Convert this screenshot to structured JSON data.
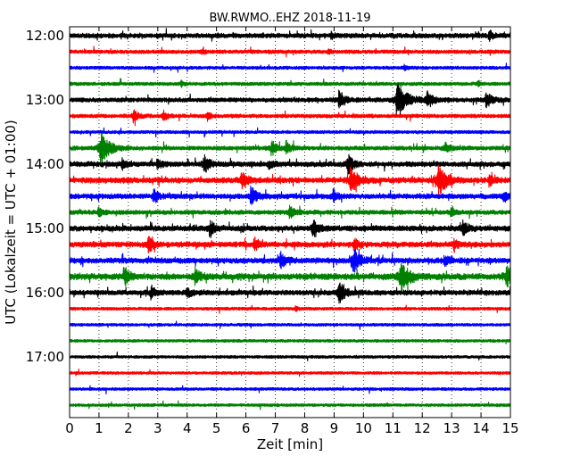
{
  "chart_data": {
    "type": "line",
    "title": "BW.RWMO..EHZ 2018-11-19",
    "xlabel": "Zeit  [min]",
    "ylabel": "UTC (Lokalzeit = UTC + 01:00)",
    "xlim": [
      0,
      15
    ],
    "x_ticks": [
      "0",
      "1",
      "2",
      "3",
      "4",
      "5",
      "6",
      "7",
      "8",
      "9",
      "10",
      "11",
      "12",
      "13",
      "14",
      "15"
    ],
    "y_ticks": [
      "12:00",
      "13:00",
      "14:00",
      "15:00",
      "16:00",
      "17:00"
    ],
    "grid": "vertical dotted",
    "colors": [
      "#000000",
      "#ff0000",
      "#0000ff",
      "#008000"
    ],
    "rows": [
      {
        "start": "12:00",
        "color": "#000000",
        "activity": 0.35,
        "events": [
          [
            14.3,
            0.6
          ],
          [
            8.9,
            0.35
          ]
        ]
      },
      {
        "start": "12:15",
        "color": "#ff0000",
        "activity": 0.2,
        "events": [
          [
            4.5,
            0.25
          ],
          [
            8.8,
            0.25
          ]
        ]
      },
      {
        "start": "12:30",
        "color": "#0000ff",
        "activity": 0.12,
        "events": [
          [
            11.4,
            0.3
          ]
        ]
      },
      {
        "start": "12:45",
        "color": "#008000",
        "activity": 0.15,
        "events": [
          [
            3.8,
            0.3
          ],
          [
            13.9,
            0.25
          ]
        ]
      },
      {
        "start": "13:00",
        "color": "#000000",
        "activity": 0.3,
        "events": [
          [
            9.2,
            1.0
          ],
          [
            11.2,
            1.9
          ],
          [
            12.2,
            0.9
          ],
          [
            14.2,
            0.9
          ]
        ]
      },
      {
        "start": "13:15",
        "color": "#ff0000",
        "activity": 0.2,
        "events": [
          [
            2.2,
            0.8
          ],
          [
            3.2,
            0.6
          ],
          [
            4.7,
            0.5
          ]
        ]
      },
      {
        "start": "13:30",
        "color": "#0000ff",
        "activity": 0.12,
        "events": []
      },
      {
        "start": "13:45",
        "color": "#008000",
        "activity": 0.25,
        "events": [
          [
            1.1,
            1.8
          ],
          [
            6.9,
            0.8
          ],
          [
            7.4,
            0.7
          ],
          [
            12.8,
            0.6
          ]
        ]
      },
      {
        "start": "14:00",
        "color": "#000000",
        "activity": 0.4,
        "events": [
          [
            1.8,
            0.6
          ],
          [
            3.0,
            0.6
          ],
          [
            4.6,
            0.9
          ],
          [
            6.8,
            0.5
          ],
          [
            9.5,
            1.0
          ]
        ]
      },
      {
        "start": "14:15",
        "color": "#ff0000",
        "activity": 0.45,
        "events": [
          [
            5.9,
            0.9
          ],
          [
            9.6,
            1.4
          ],
          [
            12.6,
            1.6
          ],
          [
            14.3,
            0.6
          ]
        ]
      },
      {
        "start": "14:30",
        "color": "#0000ff",
        "activity": 0.4,
        "events": [
          [
            2.9,
            0.7
          ],
          [
            6.2,
            1.0
          ],
          [
            9.0,
            0.7
          ],
          [
            14.8,
            0.6
          ]
        ]
      },
      {
        "start": "14:45",
        "color": "#008000",
        "activity": 0.3,
        "events": [
          [
            1.0,
            0.5
          ],
          [
            7.5,
            0.7
          ],
          [
            13.0,
            0.6
          ]
        ]
      },
      {
        "start": "15:00",
        "color": "#000000",
        "activity": 0.45,
        "events": [
          [
            4.8,
            0.8
          ],
          [
            8.3,
            0.9
          ],
          [
            13.4,
            0.8
          ]
        ]
      },
      {
        "start": "15:15",
        "color": "#ff0000",
        "activity": 0.45,
        "events": [
          [
            2.7,
            0.9
          ],
          [
            6.3,
            0.7
          ],
          [
            9.7,
            0.7
          ],
          [
            13.1,
            0.6
          ]
        ]
      },
      {
        "start": "15:30",
        "color": "#0000ff",
        "activity": 0.45,
        "events": [
          [
            7.2,
            0.9
          ],
          [
            9.7,
            1.2
          ],
          [
            12.8,
            0.5
          ]
        ]
      },
      {
        "start": "15:45",
        "color": "#008000",
        "activity": 0.55,
        "events": [
          [
            1.9,
            0.9
          ],
          [
            4.3,
            0.9
          ],
          [
            11.3,
            1.6
          ],
          [
            14.9,
            1.2
          ]
        ]
      },
      {
        "start": "16:00",
        "color": "#000000",
        "activity": 0.4,
        "events": [
          [
            2.8,
            0.7
          ],
          [
            4.0,
            0.6
          ],
          [
            9.2,
            1.1
          ]
        ]
      },
      {
        "start": "16:15",
        "color": "#ff0000",
        "activity": 0.1,
        "events": [
          [
            7.7,
            0.25
          ]
        ]
      },
      {
        "start": "16:30",
        "color": "#0000ff",
        "activity": 0.07,
        "events": []
      },
      {
        "start": "16:45",
        "color": "#008000",
        "activity": 0.07,
        "events": []
      },
      {
        "start": "17:00",
        "color": "#000000",
        "activity": 0.07,
        "events": []
      },
      {
        "start": "17:15",
        "color": "#ff0000",
        "activity": 0.07,
        "events": []
      },
      {
        "start": "17:30",
        "color": "#0000ff",
        "activity": 0.07,
        "events": []
      },
      {
        "start": "17:45",
        "color": "#008000",
        "activity": 0.07,
        "events": []
      }
    ]
  }
}
